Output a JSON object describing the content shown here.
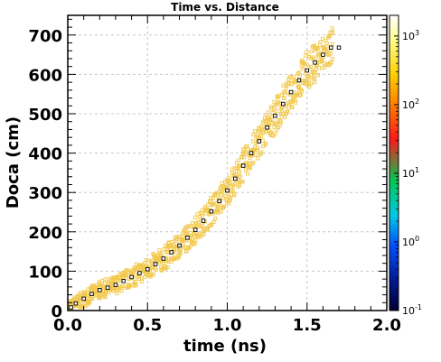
{
  "chart_data": {
    "type": "heatmap",
    "title": "Time vs. Distance",
    "xlabel": "time (ns)",
    "ylabel": "Doca (cm)",
    "xlim": [
      0.0,
      2.0
    ],
    "ylim": [
      0,
      750
    ],
    "x_ticks": [
      "0.0",
      "0.5",
      "1.0",
      "1.5",
      "2.0"
    ],
    "y_ticks": [
      "0",
      "100",
      "200",
      "300",
      "400",
      "500",
      "600",
      "700"
    ],
    "grid": true,
    "colorbar": {
      "scale": "log",
      "range": [
        0.1,
        2000
      ],
      "ticks": [
        {
          "base": "10",
          "exp": "-1"
        },
        {
          "base": "10",
          "exp": "0"
        },
        {
          "base": "10",
          "exp": "1"
        },
        {
          "base": "10",
          "exp": "2"
        },
        {
          "base": "10",
          "exp": "3"
        }
      ],
      "palette": [
        "#000030",
        "#001890",
        "#0050ff",
        "#00c8e8",
        "#00c850",
        "#ff1818",
        "#ff8000",
        "#ffd000",
        "#ffff90",
        "#ffffff"
      ]
    },
    "cell_color": "#f2c94c",
    "profile": {
      "x": [
        0.02,
        0.05,
        0.1,
        0.15,
        0.2,
        0.25,
        0.3,
        0.35,
        0.4,
        0.45,
        0.5,
        0.55,
        0.6,
        0.65,
        0.7,
        0.75,
        0.8,
        0.85,
        0.9,
        0.95,
        1.0,
        1.05,
        1.1,
        1.15,
        1.2,
        1.25,
        1.3,
        1.35,
        1.4,
        1.45,
        1.5,
        1.55,
        1.6,
        1.65,
        1.7
      ],
      "y": [
        8,
        18,
        30,
        42,
        52,
        58,
        65,
        75,
        85,
        95,
        105,
        118,
        132,
        148,
        165,
        185,
        205,
        228,
        252,
        278,
        305,
        335,
        368,
        400,
        430,
        465,
        495,
        525,
        555,
        585,
        610,
        630,
        650,
        668,
        668
      ]
    }
  }
}
